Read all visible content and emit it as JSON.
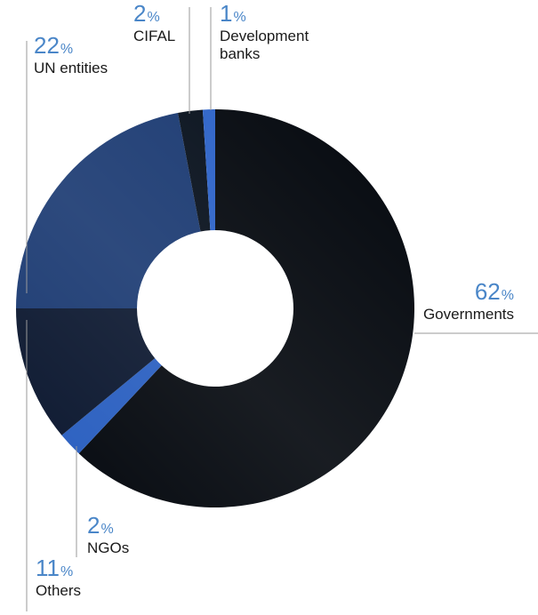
{
  "chart_data": {
    "type": "pie",
    "donut": true,
    "start": "top",
    "direction": "clockwise",
    "pct_color": "#4a86c8",
    "line_color": "#9a9a9a",
    "slices": [
      {
        "label": "Governments",
        "label_lines": [
          "Governments"
        ],
        "value": 62,
        "pct": "62",
        "color": "#05090f"
      },
      {
        "label": "NGOs",
        "label_lines": [
          "NGOs"
        ],
        "value": 2,
        "pct": "2",
        "color": "#2a5fc0"
      },
      {
        "label": "Others",
        "label_lines": [
          "Others"
        ],
        "value": 11,
        "pct": "11",
        "color": "#0c1830"
      },
      {
        "label": "UN entities",
        "label_lines": [
          "UN entities"
        ],
        "value": 22,
        "pct": "22",
        "color": "#1b3a72"
      },
      {
        "label": "CIFAL",
        "label_lines": [
          "CIFAL"
        ],
        "value": 2,
        "pct": "2",
        "color": "#08111d"
      },
      {
        "label": "Development banks",
        "label_lines": [
          "Development",
          "banks"
        ],
        "value": 1,
        "pct": "1",
        "color": "#2d63c8"
      }
    ]
  }
}
